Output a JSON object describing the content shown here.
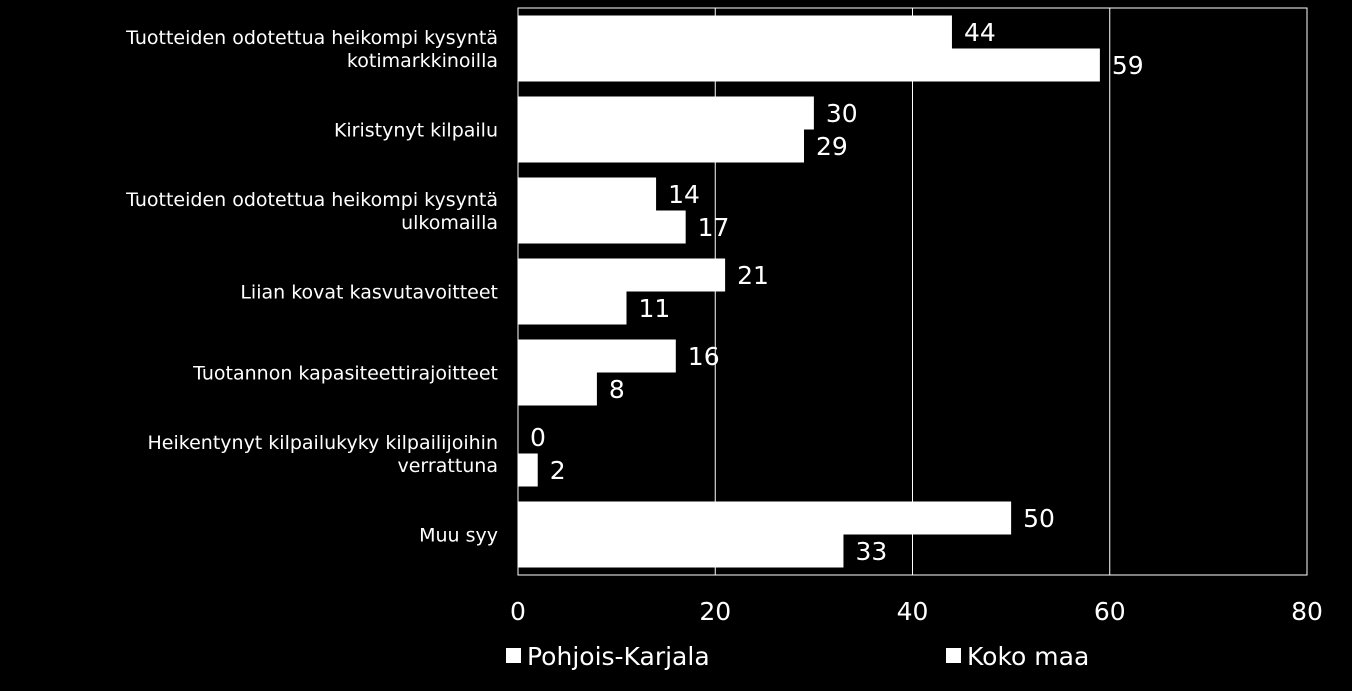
{
  "chart_data": {
    "type": "bar",
    "orientation": "horizontal",
    "categories": [
      [
        "Tuotteiden odotettua heikompi kysyntä",
        "kotimarkkinoilla"
      ],
      [
        "Kiristynyt kilpailu"
      ],
      [
        "Tuotteiden odotettua heikompi kysyntä",
        "ulkomailla"
      ],
      [
        "Liian kovat kasvutavoitteet"
      ],
      [
        "Tuotannon kapasiteettirajoitteet"
      ],
      [
        "Heikentynyt kilpailukyky kilpailijoihin",
        "verrattuna"
      ],
      [
        "Muu syy"
      ]
    ],
    "series": [
      {
        "name": "Pohjois-Karjala",
        "values": [
          44,
          30,
          14,
          21,
          16,
          0,
          50
        ],
        "color": "#ffffff"
      },
      {
        "name": "Koko maa",
        "values": [
          59,
          29,
          17,
          11,
          8,
          2,
          33
        ],
        "color": "#ffffff"
      }
    ],
    "xlim": [
      0,
      80
    ],
    "xticks": [
      0,
      20,
      40,
      60,
      80
    ],
    "grid": true,
    "legend": "bottom",
    "background": "#000000",
    "text_color": "#ffffff"
  }
}
